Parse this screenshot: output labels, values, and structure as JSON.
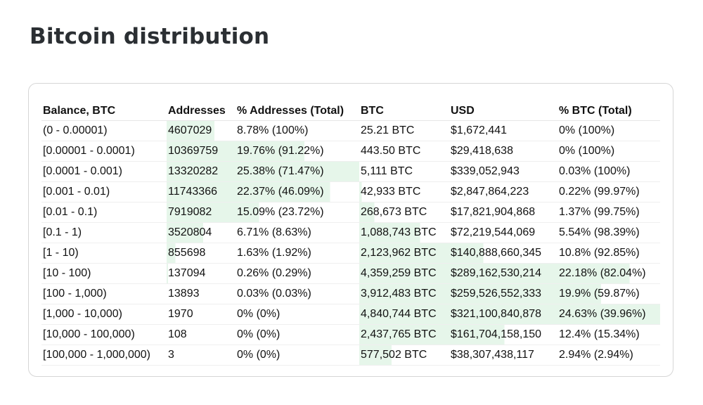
{
  "page": {
    "title": "Bitcoin distribution"
  },
  "colors": {
    "highlight": "#e6f6ea"
  },
  "table": {
    "headers": [
      "Balance, BTC",
      "Addresses",
      "% Addresses (Total)",
      "BTC",
      "USD",
      "% BTC (Total)"
    ],
    "rows": [
      {
        "balance": "(0 - 0.00001)",
        "addresses": "4607029",
        "pct_addresses": "8.78% (100%)",
        "btc": "25.21 BTC",
        "usd": "$1,672,441",
        "pct_btc": "0% (100%)"
      },
      {
        "balance": "[0.00001 - 0.0001)",
        "addresses": "10369759",
        "pct_addresses": "19.76% (91.22%)",
        "btc": "443.50 BTC",
        "usd": "$29,418,638",
        "pct_btc": "0% (100%)"
      },
      {
        "balance": "[0.0001 - 0.001)",
        "addresses": "13320282",
        "pct_addresses": "25.38% (71.47%)",
        "btc": "5,111 BTC",
        "usd": "$339,052,943",
        "pct_btc": "0.03% (100%)"
      },
      {
        "balance": "[0.001 - 0.01)",
        "addresses": "11743366",
        "pct_addresses": "22.37% (46.09%)",
        "btc": "42,933 BTC",
        "usd": "$2,847,864,223",
        "pct_btc": "0.22% (99.97%)"
      },
      {
        "balance": "[0.01 - 0.1)",
        "addresses": "7919082",
        "pct_addresses": "15.09% (23.72%)",
        "btc": "268,673 BTC",
        "usd": "$17,821,904,868",
        "pct_btc": "1.37% (99.75%)"
      },
      {
        "balance": "[0.1 - 1)",
        "addresses": "3520804",
        "pct_addresses": "6.71% (8.63%)",
        "btc": "1,088,743 BTC",
        "usd": "$72,219,544,069",
        "pct_btc": "5.54% (98.39%)"
      },
      {
        "balance": "[1 - 10)",
        "addresses": "855698",
        "pct_addresses": "1.63% (1.92%)",
        "btc": "2,123,962 BTC",
        "usd": "$140,888,660,345",
        "pct_btc": "10.8% (92.85%)"
      },
      {
        "balance": "[10 - 100)",
        "addresses": "137094",
        "pct_addresses": "0.26% (0.29%)",
        "btc": "4,359,259 BTC",
        "usd": "$289,162,530,214",
        "pct_btc": "22.18% (82.04%)"
      },
      {
        "balance": "[100 - 1,000)",
        "addresses": "13893",
        "pct_addresses": "0.03% (0.03%)",
        "btc": "3,912,483 BTC",
        "usd": "$259,526,552,333",
        "pct_btc": "19.9% (59.87%)"
      },
      {
        "balance": "[1,000 - 10,000)",
        "addresses": "1970",
        "pct_addresses": "0% (0%)",
        "btc": "4,840,744 BTC",
        "usd": "$321,100,840,878",
        "pct_btc": "24.63% (39.96%)"
      },
      {
        "balance": "[10,000 - 100,000)",
        "addresses": "108",
        "pct_addresses": "0% (0%)",
        "btc": "2,437,765 BTC",
        "usd": "$161,704,158,150",
        "pct_btc": "12.4% (15.34%)"
      },
      {
        "balance": "[100,000 - 1,000,000)",
        "addresses": "3",
        "pct_addresses": "0% (0%)",
        "btc": "577,502 BTC",
        "usd": "$38,307,438,117",
        "pct_btc": "2.94% (2.94%)"
      }
    ],
    "address_share_pct": [
      8.78,
      19.76,
      25.38,
      22.37,
      15.09,
      6.71,
      1.63,
      0.26,
      0.03,
      0,
      0,
      0
    ],
    "btc_share_pct": [
      0,
      0,
      0.03,
      0.22,
      1.37,
      5.54,
      10.8,
      22.18,
      19.9,
      24.63,
      12.4,
      2.94
    ]
  }
}
